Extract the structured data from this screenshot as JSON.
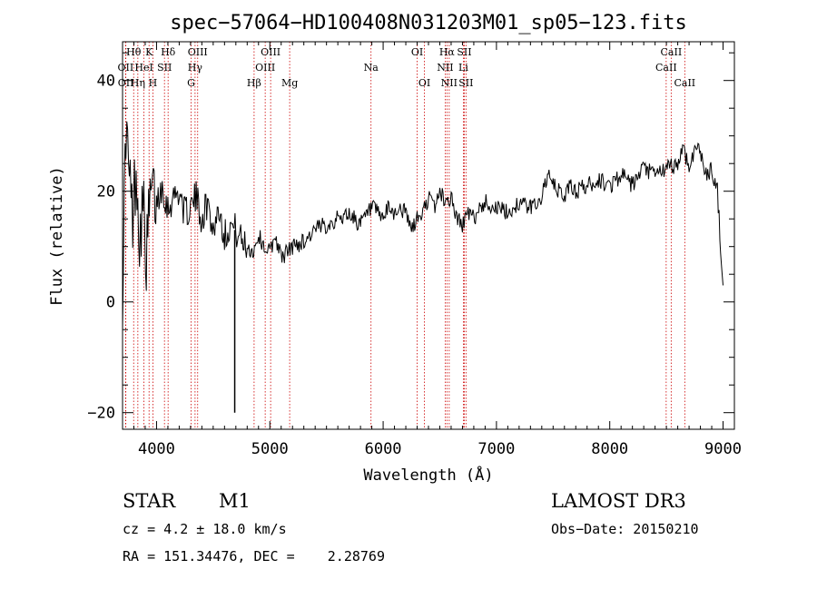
{
  "chart_data": {
    "type": "line",
    "title": "spec−57064−HD100408N031203M01_sp05−123.fits",
    "xlabel": "Wavelength (Å)",
    "ylabel": "Flux (relative)",
    "xlim": [
      3700,
      9100
    ],
    "ylim": [
      -23,
      47
    ],
    "x_ticks": [
      4000,
      5000,
      6000,
      7000,
      8000,
      9000
    ],
    "x_tick_labels": [
      "4000",
      "5000",
      "6000",
      "7000",
      "8000",
      "9000"
    ],
    "y_ticks": [
      -20,
      0,
      20,
      40
    ],
    "y_tick_labels": [
      "−20",
      "0",
      "20",
      "40"
    ],
    "line_color": "#000000",
    "marker_color": "#cc0000",
    "series": [
      {
        "name": "flux",
        "x": [
          3700,
          3730,
          3760,
          3790,
          3820,
          3850,
          3880,
          3910,
          3950,
          4000,
          4050,
          4100,
          4150,
          4200,
          4250,
          4300,
          4350,
          4400,
          4450,
          4500,
          4550,
          4600,
          4650,
          4700,
          4750,
          4800,
          4850,
          4900,
          4950,
          5000,
          5050,
          5100,
          5150,
          5200,
          5300,
          5400,
          5500,
          5600,
          5700,
          5800,
          5900,
          6000,
          6050,
          6100,
          6150,
          6200,
          6250,
          6300,
          6350,
          6400,
          6450,
          6500,
          6550,
          6600,
          6650,
          6700,
          6750,
          6800,
          6850,
          6900,
          7000,
          7100,
          7200,
          7300,
          7400,
          7450,
          7500,
          7550,
          7600,
          7650,
          7700,
          7800,
          7900,
          8000,
          8100,
          8200,
          8300,
          8400,
          8500,
          8600,
          8650,
          8700,
          8750,
          8800,
          8850,
          8900,
          8950,
          9000
        ],
        "y": [
          2,
          32,
          22,
          15,
          25,
          12,
          18,
          8,
          20,
          18,
          21,
          17,
          19,
          20,
          16,
          17,
          19,
          15,
          18,
          13,
          17,
          12,
          14,
          13,
          11,
          10,
          9,
          12,
          10,
          9,
          12,
          8,
          9,
          10,
          11,
          13,
          14,
          15,
          16,
          14,
          17,
          15,
          17,
          16,
          17,
          16,
          13,
          15,
          16,
          19,
          17,
          20,
          18,
          19,
          15,
          14,
          16,
          15,
          17,
          18,
          17,
          16,
          18,
          17,
          19,
          23,
          21,
          20,
          19,
          21,
          20,
          21,
          22,
          21,
          23,
          21,
          24,
          23,
          24,
          25,
          28,
          24,
          28,
          27,
          23,
          24,
          20,
          3
        ]
      }
    ],
    "dropout": {
      "x": 4690,
      "y_low": -20,
      "y_high": 13
    },
    "lines": [
      {
        "label": "Hθ",
        "x": 3798,
        "row": 0
      },
      {
        "label": "OII",
        "x": 3727,
        "row": 1
      },
      {
        "label": "OII",
        "x": 3729,
        "row": 2
      },
      {
        "label": "Hη",
        "x": 3835,
        "row": 2
      },
      {
        "label": "K",
        "x": 3934,
        "row": 0
      },
      {
        "label": "HeI",
        "x": 3889,
        "row": 1
      },
      {
        "label": "H",
        "x": 3968,
        "row": 2
      },
      {
        "label": "SII",
        "x": 4070,
        "row": 1
      },
      {
        "label": "Hδ",
        "x": 4102,
        "row": 0
      },
      {
        "label": "OIII",
        "x": 4363,
        "row": 0
      },
      {
        "label": "Hγ",
        "x": 4340,
        "row": 1
      },
      {
        "label": "G",
        "x": 4305,
        "row": 2
      },
      {
        "label": "OIII",
        "x": 5007,
        "row": 0
      },
      {
        "label": "OIII",
        "x": 4959,
        "row": 1
      },
      {
        "label": "Hβ",
        "x": 4861,
        "row": 2
      },
      {
        "label": "Mg",
        "x": 5175,
        "row": 2
      },
      {
        "label": "Na",
        "x": 5893,
        "row": 1
      },
      {
        "label": "OI",
        "x": 6300,
        "row": 0
      },
      {
        "label": "OI",
        "x": 6364,
        "row": 2
      },
      {
        "label": "Hα",
        "x": 6563,
        "row": 0
      },
      {
        "label": "SII",
        "x": 6716,
        "row": 0
      },
      {
        "label": "NII",
        "x": 6548,
        "row": 1
      },
      {
        "label": "Li",
        "x": 6708,
        "row": 1
      },
      {
        "label": "NII",
        "x": 6583,
        "row": 2
      },
      {
        "label": "SII",
        "x": 6731,
        "row": 2
      },
      {
        "label": "CaII",
        "x": 8542,
        "row": 0
      },
      {
        "label": "CaII",
        "x": 8498,
        "row": 1
      },
      {
        "label": "CaII",
        "x": 8662,
        "row": 2
      }
    ]
  },
  "info": {
    "object_type": "STAR",
    "subclass": "M1",
    "survey": "LAMOST DR3",
    "velocity": "cz = 4.2 ± 18.0 km/s",
    "obs_date": "Obs−Date: 20150210",
    "coords": "RA = 151.34476, DEC =    2.28769"
  }
}
